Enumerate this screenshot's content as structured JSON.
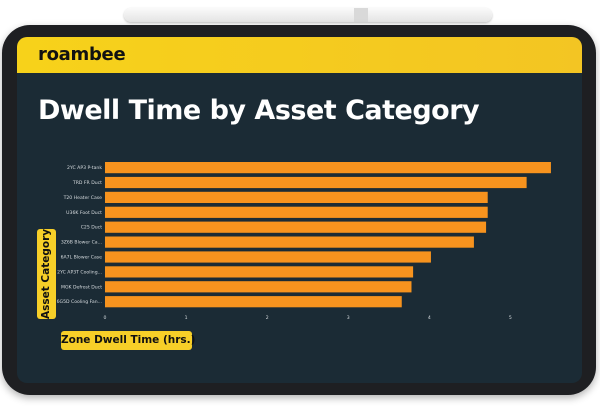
{
  "brand": {
    "name": "roambee"
  },
  "colors": {
    "bar": "#f7931e",
    "brand_yellow": "#f7cf28",
    "background": "#1b2b35"
  },
  "chart_data": {
    "type": "bar",
    "orientation": "horizontal",
    "title": "Dwell Time by Asset Category",
    "xlabel": "Zone Dwell Time (hrs.)",
    "ylabel": "Asset Category",
    "categories": [
      "2YC AP3 P-tank",
      "TRD FR Duct",
      "T20 Heater Case",
      "U36K Foot Duct",
      "C25 Duct",
      "3Z6B Blower Ca...",
      "6A7L Blower Case",
      "2YC AP3T Cooling...",
      "MGK Defrost Duct",
      "6G5D Cooling Fan..."
    ],
    "values": [
      5.5,
      5.2,
      4.72,
      4.72,
      4.7,
      4.55,
      4.02,
      3.8,
      3.78,
      3.66
    ],
    "xticks": [
      0,
      1,
      2,
      3,
      4,
      5
    ],
    "xlim": [
      0,
      5.55
    ],
    "grid": false,
    "legend": "none"
  }
}
